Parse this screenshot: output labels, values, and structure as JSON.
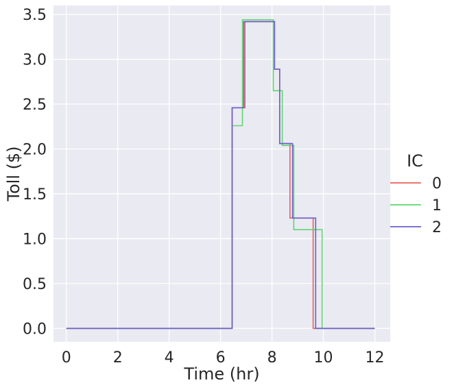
{
  "chart_data": {
    "type": "line",
    "step": true,
    "xlabel": "Time (hr)",
    "ylabel": "Toll ($)",
    "xlim": [
      -0.5,
      12.6
    ],
    "ylim": [
      -0.15,
      3.6
    ],
    "xticks": [
      0,
      2,
      4,
      6,
      8,
      10,
      12
    ],
    "xtick_labels": [
      "0",
      "2",
      "4",
      "6",
      "8",
      "10",
      "12"
    ],
    "yticks": [
      0.0,
      0.5,
      1.0,
      1.5,
      2.0,
      2.5,
      3.0,
      3.5
    ],
    "ytick_labels": [
      "0.0",
      "0.5",
      "1.0",
      "1.5",
      "2.0",
      "2.5",
      "3.0",
      "3.5"
    ],
    "grid": true,
    "background": "#eaeaf2",
    "legend": {
      "title": "IC",
      "placement": "right"
    },
    "series": [
      {
        "name": "0",
        "color": "#e8605a",
        "x": [
          0,
          6.45,
          6.45,
          6.95,
          6.95,
          8.1,
          8.1,
          8.3,
          8.3,
          8.7,
          8.7,
          9.6,
          9.6,
          12
        ],
        "y": [
          0,
          0,
          2.46,
          2.46,
          3.42,
          3.42,
          2.89,
          2.89,
          2.06,
          2.06,
          1.23,
          1.23,
          0,
          0
        ]
      },
      {
        "name": "1",
        "color": "#5ed66e",
        "x": [
          0,
          6.45,
          6.45,
          6.85,
          6.85,
          8.05,
          8.05,
          8.4,
          8.4,
          8.85,
          8.85,
          9.95,
          9.95,
          12
        ],
        "y": [
          0,
          0,
          2.26,
          2.26,
          3.44,
          3.44,
          2.65,
          2.65,
          2.04,
          2.04,
          1.1,
          1.1,
          0,
          0
        ]
      },
      {
        "name": "2",
        "color": "#6a5cd0",
        "x": [
          0,
          6.45,
          6.45,
          6.9,
          6.9,
          8.1,
          8.1,
          8.3,
          8.3,
          8.8,
          8.8,
          9.7,
          9.7,
          12
        ],
        "y": [
          0,
          0,
          2.46,
          2.46,
          3.42,
          3.42,
          2.89,
          2.89,
          2.06,
          2.06,
          1.23,
          1.23,
          0,
          0
        ]
      }
    ]
  }
}
